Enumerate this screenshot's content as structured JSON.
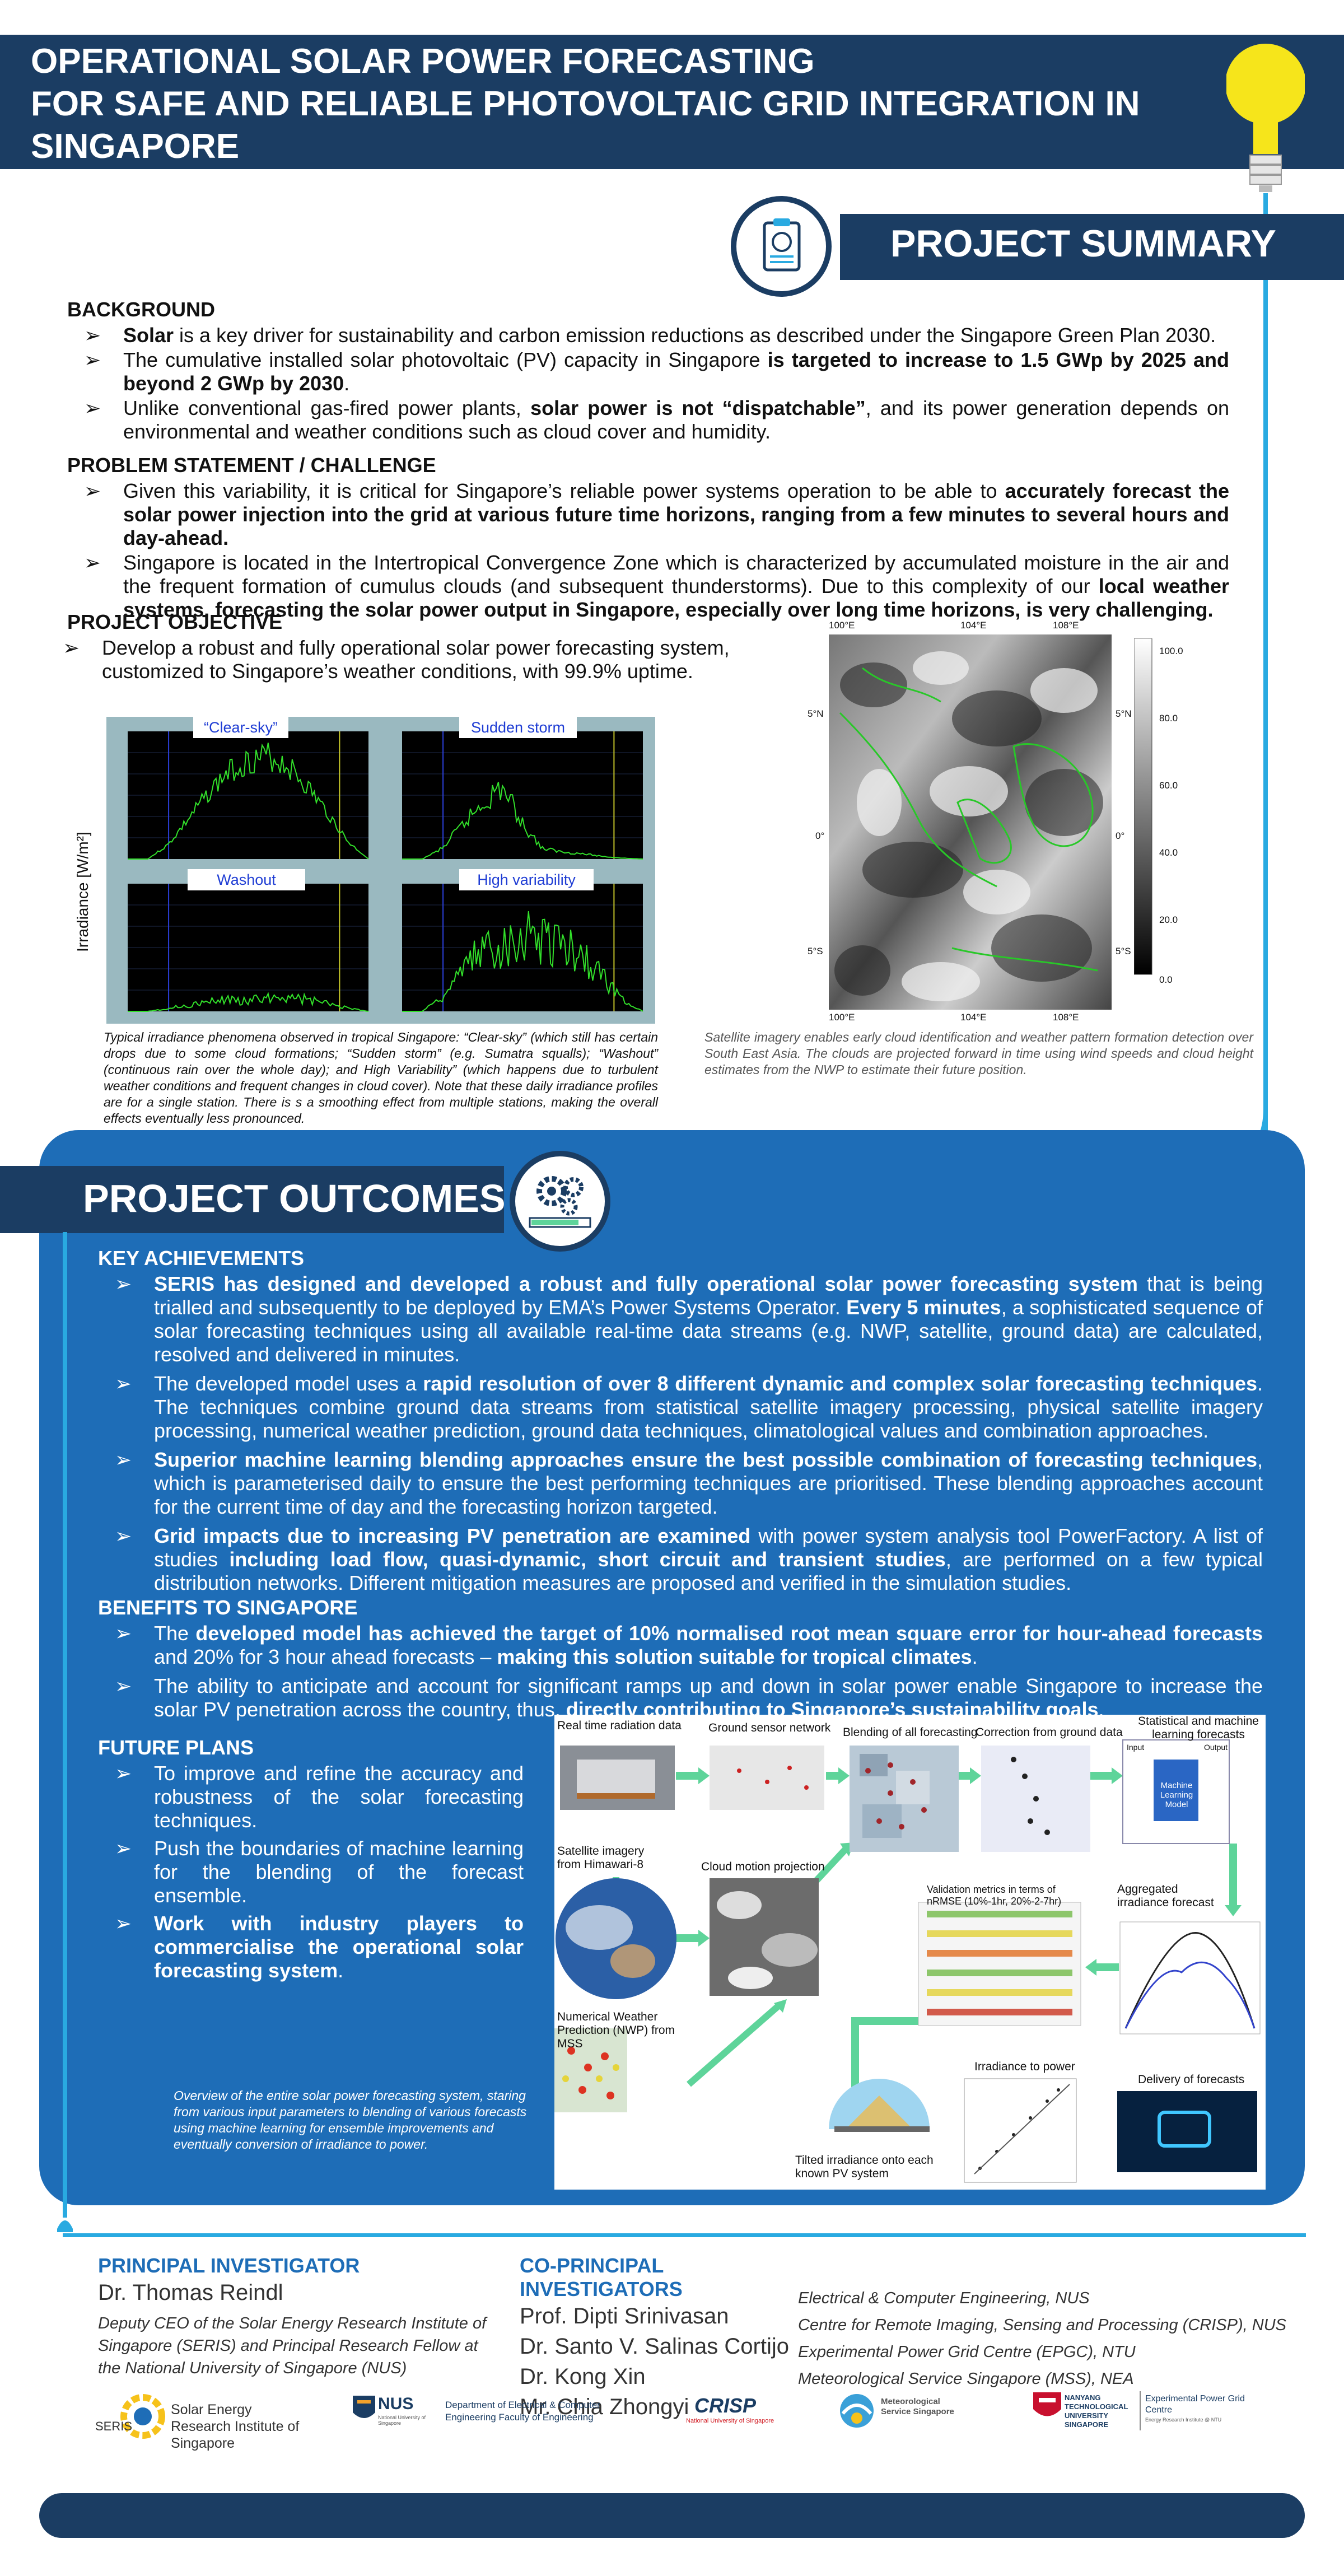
{
  "title": {
    "line1": "OPERATIONAL SOLAR POWER FORECASTING",
    "line2": "FOR SAFE AND RELIABLE PHOTOVOLTAIC GRID INTEGRATION IN",
    "line3": "SINGAPORE"
  },
  "summary_header": "PROJECT SUMMARY",
  "background": {
    "heading": "BACKGROUND",
    "items": [
      {
        "bold": "Solar",
        "text": " is a key driver for sustainability and carbon emission reductions as described under the Singapore Green Plan 2030."
      },
      {
        "pre": "The cumulative installed solar photovoltaic (PV) capacity in Singapore ",
        "bold": "is targeted to increase to 1.5 GWp by 2025 and beyond 2 GWp by 2030",
        "post": "."
      },
      {
        "pre": "Unlike conventional gas-fired power plants, ",
        "bold": "solar power is not “dispatchable”",
        "post": ", and its power generation depends on environmental and weather conditions such as cloud cover and humidity."
      }
    ]
  },
  "problem": {
    "heading": "PROBLEM STATEMENT / CHALLENGE",
    "items": [
      {
        "pre": "Given this variability, it is critical for Singapore’s reliable power systems operation to be able to ",
        "bold": "accurately forecast the solar power injection into the grid at various future time horizons, ranging from a few minutes to several hours and day-ahead."
      },
      {
        "pre": "Singapore is located in the Intertropical Convergence Zone which is characterized by accumulated moisture in the air and the frequent formation of cumulus clouds (and subsequent thunderstorms). Due to this complexity of our ",
        "bold": "local weather systems, forecasting the solar power output in Singapore, especially over long time horizons, is very challenging."
      }
    ]
  },
  "objective": {
    "heading": "PROJECT OBJECTIVE",
    "item": "Develop a robust and fully operational solar power forecasting system, customized to Singapore’s weather conditions, with 99.9% uptime."
  },
  "chart_data": {
    "type": "line",
    "ylabel": "Irradiance [W/m²]",
    "panels": [
      {
        "name": "“Clear-sky”",
        "values": [
          0,
          0,
          150,
          420,
          700,
          930,
          1050,
          1100,
          1000,
          760,
          480,
          180,
          0
        ]
      },
      {
        "name": "Sudden storm",
        "values": [
          0,
          0,
          120,
          380,
          640,
          820,
          400,
          120,
          80,
          60,
          30,
          10,
          0
        ]
      },
      {
        "name": "Washout",
        "values": [
          0,
          0,
          40,
          80,
          120,
          160,
          140,
          180,
          200,
          150,
          100,
          40,
          0
        ]
      },
      {
        "name": "High variability",
        "values": [
          0,
          0,
          200,
          500,
          800,
          900,
          1000,
          950,
          880,
          700,
          450,
          150,
          0
        ]
      }
    ]
  },
  "satellite": {
    "lon_labels": [
      "100°E",
      "104°E",
      "108°E"
    ],
    "lat_labels": [
      "5°N",
      "0°",
      "5°S"
    ],
    "colorbar": [
      "100.0",
      "80.0",
      "60.0",
      "40.0",
      "20.0",
      "0.0"
    ]
  },
  "captions": {
    "irradiance": "Typical irradiance phenomena observed in tropical Singapore: “Clear-sky” (which still has certain drops due to some cloud formations; “Sudden storm” (e.g. Sumatra squalls); “Washout” (continuous rain over the whole day); and High Variability” (which happens due to turbulent weather conditions and frequent changes in cloud cover). Note that these daily irradiance profiles are for a single station. There is s a smoothing effect from multiple stations, making the overall effects eventually less pronounced.",
    "satellite": "Satellite imagery enables early cloud identification and weather pattern formation detection over South East Asia. The clouds are projected forward in time using wind speeds and cloud height estimates from the NWP to estimate their future position."
  },
  "outcomes_header": "PROJECT OUTCOMES",
  "achievements": {
    "heading": "KEY ACHIEVEMENTS",
    "items": [
      {
        "bold": "SERIS has designed and developed a robust and fully operational solar power forecasting system",
        "post": " that is being trialled and subsequently to be deployed by EMA’s Power Systems Operator. ",
        "bold2": "Every 5 minutes",
        "post2": ", a sophisticated sequence of solar forecasting techniques using all available real-time data streams (e.g. NWP, satellite, ground data) are calculated, resolved and delivered in minutes."
      },
      {
        "pre": "The developed model uses a ",
        "bold": "rapid resolution of over 8 different dynamic and complex solar forecasting techniques",
        "post": ". The techniques combine ground data streams from statistical satellite imagery processing, physical satellite imagery processing, numerical weather prediction, ground data techniques, climatological values and combination approaches."
      },
      {
        "bold": "Superior machine learning blending approaches ensure the best possible combination of forecasting techniques",
        "post": ", which is parameterised daily to ensure the best performing techniques are prioritised. These blending approaches account for the current time of day and the forecasting horizon targeted."
      },
      {
        "bold": "Grid impacts due to increasing PV penetration are examined",
        "post": " with power system analysis tool PowerFactory. A list of studies ",
        "bold2": "including load flow, quasi-dynamic, short circuit and transient studies",
        "post2": ", are performed on a few typical distribution networks. Different mitigation measures are proposed and verified in the simulation studies."
      }
    ]
  },
  "benefits": {
    "heading": "BENEFITS TO SINGAPORE",
    "items": [
      {
        "pre": "The ",
        "bold": "developed model has achieved the target of 10% normalised root mean square error for hour-ahead forecasts",
        "post": " and 20% for 3 hour ahead forecasts – ",
        "bold2": "making this solution suitable for tropical climates",
        "post2": "."
      },
      {
        "pre": "The ability to anticipate and account for significant ramps up and down in solar power enable Singapore to increase the solar PV penetration across the country, thus, ",
        "bold": "directly contributing to Singapore’s sustainability goals",
        "post": "."
      }
    ]
  },
  "future": {
    "heading": "FUTURE PLANS",
    "items": [
      "To improve and refine the accuracy and robustness of the solar forecasting techniques.",
      "Push the boundaries of machine learning for the blending of the forecast ensemble."
    ],
    "bold_item": "Work with industry players to commercialise the operational solar forecasting system",
    "bold_item_post": "."
  },
  "workflow": {
    "caption": "Overview of the entire solar power forecasting system, staring from various input parameters to blending of various forecasts using machine learning for ensemble improvements and eventually conversion of irradiance to power.",
    "labels": {
      "realtime": "Real time radiation data",
      "ground": "Ground sensor network",
      "blending": "Blending of all forecasting",
      "correction": "Correction from ground data",
      "ml": "Statistical and machine learning forecasts",
      "ml_box": "Machine Learning Model",
      "input": "Input",
      "output": "Output",
      "himawari": "Satellite imagery from Himawari-8",
      "cloud": "Cloud motion projection",
      "validation": "Validation metrics in terms of nRMSE (10%-1hr, 20%-2-7hr)",
      "aggregated": "Aggregated irradiance forecast",
      "nwp": "Numerical Weather Prediction (NWP) from MSS",
      "irr_power": "Irradiance to power",
      "delivery": "Delivery of forecasts",
      "tilted": "Tilted irradiance onto each known PV system"
    }
  },
  "footer": {
    "pi_heading": "PRINCIPAL INVESTIGATOR",
    "pi_name": "Dr. Thomas Reindl",
    "pi_desc": "Deputy CEO of the Solar Energy Research Institute of Singapore (SERIS) and Principal Research Fellow at the National University of Singapore (NUS)",
    "co_heading": "CO-PRINCIPAL INVESTIGATORS",
    "co_names": [
      "Prof. Dipti Srinivasan",
      "Dr. Santo V. Salinas Cortijo",
      "Dr. Kong Xin",
      "Mr. Chia Zhongyi"
    ],
    "co_affil": [
      "Electrical & Computer Engineering, NUS",
      "Centre for Remote Imaging, Sensing and Processing (CRISP), NUS",
      "Experimental Power Grid Centre (EPGC), NTU",
      "Meteorological Service Singapore (MSS), NEA"
    ]
  },
  "logos": {
    "seris": "SERIS",
    "seris_name": "Solar Energy Research Institute of Singapore",
    "nus": "NUS",
    "nus_sub": "National University of Singapore",
    "nus_dept": "Department of Electrical & Computer Engineering Faculty of Engineering",
    "crisp": "CRISP",
    "crisp_sub": "National University of Singapore",
    "mss": "Meteorological Service Singapore",
    "ntu": "NANYANG TECHNOLOGICAL UNIVERSITY SINGAPORE",
    "epgc": "Experimental Power Grid Centre",
    "epgc_sub": "Energy Research Institute @ NTU"
  },
  "colors": {
    "navy": "#1b3d63",
    "blue": "#1e6db7",
    "cyan": "#29aae1",
    "green": "#5ed49a"
  }
}
